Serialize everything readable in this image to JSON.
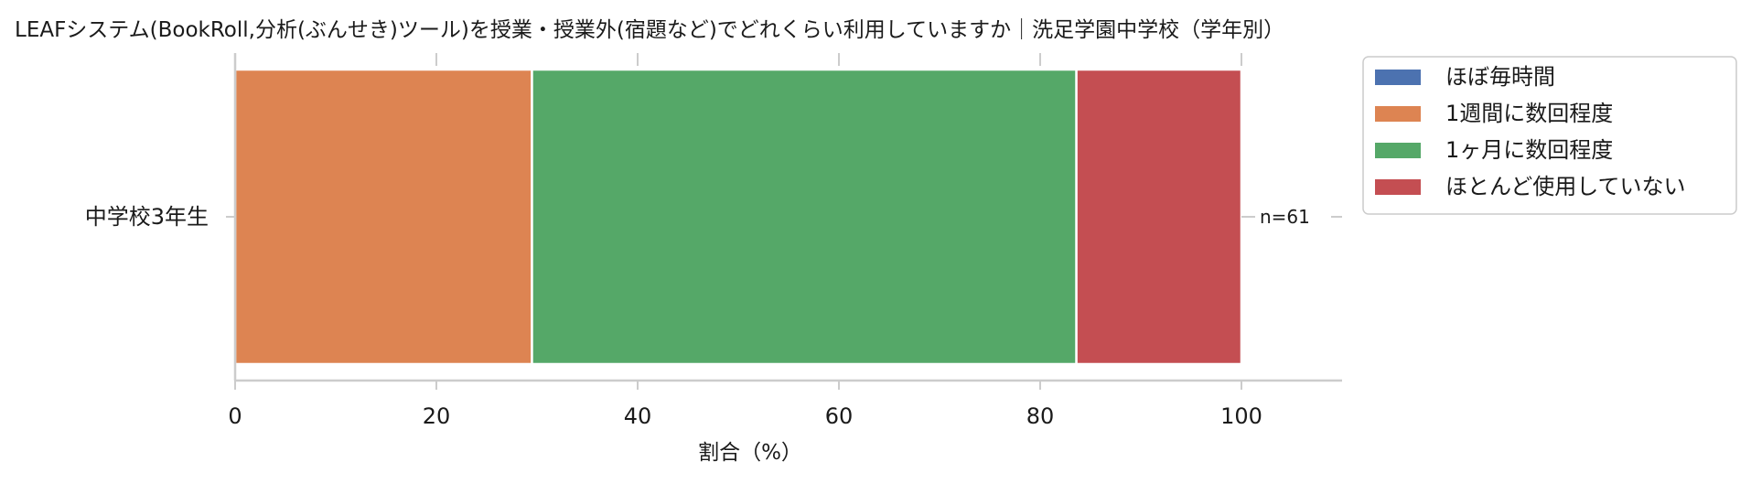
{
  "chart_data": {
    "type": "bar",
    "orientation": "horizontal",
    "stacked": true,
    "title": "LEAFシステム(BookRoll,分析(ぶんせき)ツール)を授業・授業外(宿題など)でどれくらい利用していますか｜洗足学園中学校（学年別）",
    "categories": [
      "中学校3年生"
    ],
    "xlabel": "割合（%）",
    "ylabel": "",
    "xlim": [
      0,
      110
    ],
    "xticks": [
      0,
      20,
      40,
      60,
      80,
      100
    ],
    "series": [
      {
        "name": "ほぼ毎時間",
        "values": [
          0
        ],
        "color": "#4c72b0"
      },
      {
        "name": "1週間に数回程度",
        "values": [
          29.5
        ],
        "color": "#dd8452"
      },
      {
        "name": "1ヶ月に数回程度",
        "values": [
          54.1
        ],
        "color": "#55a868"
      },
      {
        "name": "ほとんど使用していない",
        "values": [
          16.4
        ],
        "color": "#c44e52"
      }
    ],
    "annotations": [
      "n=61"
    ],
    "legend_position": "top-right-outside",
    "grid": false
  }
}
